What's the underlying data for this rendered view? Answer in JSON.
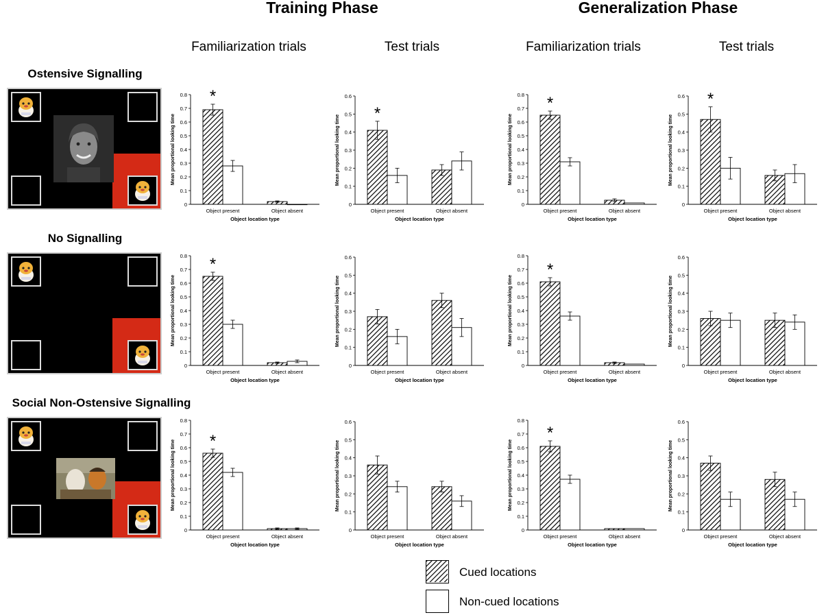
{
  "phases": {
    "training": "Training Phase",
    "generalization": "Generalization Phase"
  },
  "columns": {
    "training_familiarization": "Familiarization trials",
    "training_test": "Test trials",
    "generalization_familiarization": "Familiarization trials",
    "generalization_test": "Test trials"
  },
  "conditions": {
    "ostensive": "Ostensive Signalling",
    "no_signalling": "No Signalling",
    "social": "Social Non-Ostensive Signalling"
  },
  "legend": {
    "cued": "Cued locations",
    "noncued": "Non-cued locations"
  },
  "colors": {
    "red_zone": "#d42a16",
    "scene_bg": "#000000",
    "bar_outline": "#000000"
  },
  "chart_data": [
    {
      "id": "os-tf",
      "type": "bar",
      "condition": "Ostensive Signalling",
      "panel": "Training Familiarization",
      "categories": [
        "Object present",
        "Object absent"
      ],
      "series": [
        {
          "name": "Cued locations",
          "values": [
            0.69,
            0.02
          ],
          "err": [
            0.04,
            0.005
          ]
        },
        {
          "name": "Non-cued locations",
          "values": [
            0.28,
            0.0
          ],
          "err": [
            0.04,
            0
          ]
        }
      ],
      "ylim": [
        0,
        0.8
      ],
      "yticks": [
        "0",
        "0.1",
        "0.2",
        "0.3",
        "0.4",
        "0.5",
        "0.6",
        "0.7",
        "0.8"
      ],
      "xlabel": "Object location type",
      "ylabel": "Mean proportional looking time",
      "star": "*",
      "star_index": 0
    },
    {
      "id": "os-tt",
      "type": "bar",
      "condition": "Ostensive Signalling",
      "panel": "Training Test",
      "categories": [
        "Object present",
        "Object absent"
      ],
      "series": [
        {
          "name": "Cued locations",
          "values": [
            0.41,
            0.19
          ],
          "err": [
            0.05,
            0.03
          ]
        },
        {
          "name": "Non-cued locations",
          "values": [
            0.16,
            0.24
          ],
          "err": [
            0.04,
            0.05
          ]
        }
      ],
      "ylim": [
        0,
        0.6
      ],
      "yticks": [
        "0",
        "0.1",
        "0.2",
        "0.3",
        "0.4",
        "0.5",
        "0.6"
      ],
      "xlabel": "Object location type",
      "ylabel": "Mean proportional looking time",
      "star": "*",
      "star_index": 0
    },
    {
      "id": "os-gf",
      "type": "bar",
      "condition": "Ostensive Signalling",
      "panel": "Generalization Familiarization",
      "categories": [
        "Object present",
        "Object absent"
      ],
      "series": [
        {
          "name": "Cued locations",
          "values": [
            0.65,
            0.03
          ],
          "err": [
            0.03,
            0.01
          ]
        },
        {
          "name": "Non-cued locations",
          "values": [
            0.31,
            0.01
          ],
          "err": [
            0.03,
            0
          ]
        }
      ],
      "ylim": [
        0,
        0.8
      ],
      "yticks": [
        "0",
        "0.1",
        "0.2",
        "0.3",
        "0.4",
        "0.5",
        "0.6",
        "0.7",
        "0.8"
      ],
      "xlabel": "Object location type",
      "ylabel": "Mean proportional looking time",
      "star": "*",
      "star_index": 0
    },
    {
      "id": "os-gt",
      "type": "bar",
      "condition": "Ostensive Signalling",
      "panel": "Generalization Test",
      "categories": [
        "Object present",
        "Object absent"
      ],
      "series": [
        {
          "name": "Cued locations",
          "values": [
            0.47,
            0.16
          ],
          "err": [
            0.07,
            0.03
          ]
        },
        {
          "name": "Non-cued locations",
          "values": [
            0.2,
            0.17
          ],
          "err": [
            0.06,
            0.05
          ]
        }
      ],
      "ylim": [
        0,
        0.6
      ],
      "yticks": [
        "0",
        "0.1",
        "0.2",
        "0.3",
        "0.4",
        "0.5",
        "0.6"
      ],
      "xlabel": "Object location type",
      "ylabel": "Mean proportional looking time",
      "star": "*",
      "star_index": 0
    },
    {
      "id": "ns-tf",
      "type": "bar",
      "condition": "No Signalling",
      "panel": "Training Familiarization",
      "categories": [
        "Object present",
        "Object absent"
      ],
      "series": [
        {
          "name": "Cued locations",
          "values": [
            0.65,
            0.02
          ],
          "err": [
            0.03,
            0.005
          ]
        },
        {
          "name": "Non-cued locations",
          "values": [
            0.3,
            0.03
          ],
          "err": [
            0.03,
            0.01
          ]
        }
      ],
      "ylim": [
        0,
        0.8
      ],
      "yticks": [
        "0",
        "0.1",
        "0.2",
        "0.3",
        "0.4",
        "0.5",
        "0.6",
        "0.7",
        "0.8"
      ],
      "xlabel": "Object location type",
      "ylabel": "Mean proportional looking time",
      "star": "*",
      "star_index": 0
    },
    {
      "id": "ns-tt",
      "type": "bar",
      "condition": "No Signalling",
      "panel": "Training Test",
      "categories": [
        "Object present",
        "Object absent"
      ],
      "series": [
        {
          "name": "Cued locations",
          "values": [
            0.27,
            0.36
          ],
          "err": [
            0.04,
            0.04
          ]
        },
        {
          "name": "Non-cued locations",
          "values": [
            0.16,
            0.21
          ],
          "err": [
            0.04,
            0.05
          ]
        }
      ],
      "ylim": [
        0,
        0.6
      ],
      "yticks": [
        "0",
        "0.1",
        "0.2",
        "0.3",
        "0.4",
        "0.5",
        "0.6"
      ],
      "xlabel": "Object location type",
      "ylabel": "Mean proportional looking time",
      "star": "",
      "star_index": 0
    },
    {
      "id": "ns-gf",
      "type": "bar",
      "condition": "No Signalling",
      "panel": "Generalization Familiarization",
      "categories": [
        "Object present",
        "Object absent"
      ],
      "series": [
        {
          "name": "Cued locations",
          "values": [
            0.61,
            0.02
          ],
          "err": [
            0.03,
            0.005
          ]
        },
        {
          "name": "Non-cued locations",
          "values": [
            0.36,
            0.01
          ],
          "err": [
            0.03,
            0
          ]
        }
      ],
      "ylim": [
        0,
        0.8
      ],
      "yticks": [
        "0",
        "0.1",
        "0.2",
        "0.3",
        "0.4",
        "0.5",
        "0.6",
        "0.7",
        "0.8"
      ],
      "xlabel": "Object location type",
      "ylabel": "Mean proportional looking time",
      "star": "*",
      "star_index": 0
    },
    {
      "id": "ns-gt",
      "type": "bar",
      "condition": "No Signalling",
      "panel": "Generalization Test",
      "categories": [
        "Object present",
        "Object absent"
      ],
      "series": [
        {
          "name": "Cued locations",
          "values": [
            0.26,
            0.25
          ],
          "err": [
            0.04,
            0.04
          ]
        },
        {
          "name": "Non-cued locations",
          "values": [
            0.25,
            0.24
          ],
          "err": [
            0.04,
            0.04
          ]
        }
      ],
      "ylim": [
        0,
        0.6
      ],
      "yticks": [
        "0",
        "0.1",
        "0.2",
        "0.3",
        "0.4",
        "0.5",
        "0.6"
      ],
      "xlabel": "Object location type",
      "ylabel": "Mean proportional looking time",
      "star": "",
      "star_index": 0
    },
    {
      "id": "so-tf",
      "type": "bar",
      "condition": "Social Non-Ostensive Signalling",
      "panel": "Training Familiarization",
      "categories": [
        "Object present",
        "Object absent"
      ],
      "series": [
        {
          "name": "Cued locations",
          "values": [
            0.56,
            0.01
          ],
          "err": [
            0.03,
            0.005
          ]
        },
        {
          "name": "Non-cued locations",
          "values": [
            0.42,
            0.01
          ],
          "err": [
            0.03,
            0.005
          ]
        }
      ],
      "ylim": [
        0,
        0.8
      ],
      "yticks": [
        "0",
        "0.1",
        "0.2",
        "0.3",
        "0.4",
        "0.5",
        "0.6",
        "0.7",
        "0.8"
      ],
      "xlabel": "Object location type",
      "ylabel": "Mean proportional looking time",
      "star": "*",
      "star_index": 0
    },
    {
      "id": "so-tt",
      "type": "bar",
      "condition": "Social Non-Ostensive Signalling",
      "panel": "Training Test",
      "categories": [
        "Object present",
        "Object absent"
      ],
      "series": [
        {
          "name": "Cued locations",
          "values": [
            0.36,
            0.24
          ],
          "err": [
            0.05,
            0.03
          ]
        },
        {
          "name": "Non-cued locations",
          "values": [
            0.24,
            0.16
          ],
          "err": [
            0.03,
            0.03
          ]
        }
      ],
      "ylim": [
        0,
        0.6
      ],
      "yticks": [
        "0",
        "0.1",
        "0.2",
        "0.3",
        "0.4",
        "0.5",
        "0.6"
      ],
      "xlabel": "Object location type",
      "ylabel": "Mean proportional looking time",
      "star": "",
      "star_index": 0
    },
    {
      "id": "so-gf",
      "type": "bar",
      "condition": "Social Non-Ostensive Signalling",
      "panel": "Generalization Familiarization",
      "categories": [
        "Object present",
        "Object absent"
      ],
      "series": [
        {
          "name": "Cued locations",
          "values": [
            0.61,
            0.01
          ],
          "err": [
            0.04,
            0
          ]
        },
        {
          "name": "Non-cued locations",
          "values": [
            0.37,
            0.01
          ],
          "err": [
            0.03,
            0
          ]
        }
      ],
      "ylim": [
        0,
        0.8
      ],
      "yticks": [
        "0",
        "0.1",
        "0.2",
        "0.3",
        "0.4",
        "0.5",
        "0.6",
        "0.7",
        "0.8"
      ],
      "xlabel": "Object location type",
      "ylabel": "Mean proportional looking time",
      "star": "*",
      "star_index": 0
    },
    {
      "id": "so-gt",
      "type": "bar",
      "condition": "Social Non-Ostensive Signalling",
      "panel": "Generalization Test",
      "categories": [
        "Object present",
        "Object absent"
      ],
      "series": [
        {
          "name": "Cued locations",
          "values": [
            0.37,
            0.28
          ],
          "err": [
            0.04,
            0.04
          ]
        },
        {
          "name": "Non-cued locations",
          "values": [
            0.17,
            0.17
          ],
          "err": [
            0.04,
            0.04
          ]
        }
      ],
      "ylim": [
        0,
        0.6
      ],
      "yticks": [
        "0",
        "0.1",
        "0.2",
        "0.3",
        "0.4",
        "0.5",
        "0.6"
      ],
      "xlabel": "Object location type",
      "ylabel": "Mean proportional looking time",
      "star": "",
      "star_index": 0
    }
  ]
}
